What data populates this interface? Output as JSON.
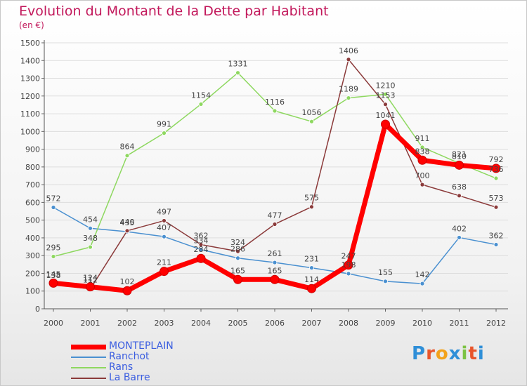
{
  "chart_data": {
    "type": "line",
    "title": "Evolution du Montant de la Dette par Habitant",
    "subtitle": "(en €)",
    "x": [
      "2000",
      "2001",
      "2002",
      "2003",
      "2004",
      "2005",
      "2006",
      "2007",
      "2008",
      "2009",
      "2010",
      "2011",
      "2012"
    ],
    "yticks": [
      "0",
      "100",
      "200",
      "300",
      "400",
      "500",
      "600",
      "700",
      "800",
      "900",
      "1000",
      "1100",
      "1200",
      "1300",
      "1400",
      "1500"
    ],
    "ylim": [
      0,
      1500
    ],
    "grid": "horizontal",
    "legend_position": "bottom-left",
    "series": [
      {
        "name": "MONTEPLAIN",
        "values": [
          145,
          124,
          102,
          211,
          284,
          165,
          165,
          114,
          247,
          1041,
          838,
          810,
          792
        ],
        "labels": [
          "145",
          "124",
          "102",
          "211",
          "284",
          "165",
          "165",
          "114",
          "247",
          "1041",
          "838",
          "810",
          "792"
        ],
        "color": "#ff0000",
        "width": 7,
        "marker": 6
      },
      {
        "name": "Ranchot",
        "values": [
          572,
          454,
          435,
          407,
          334,
          286,
          261,
          231,
          198,
          155,
          142,
          402,
          362
        ],
        "labels": [
          "572",
          "454",
          "435",
          "407",
          "334",
          "286",
          "261",
          "231",
          "198",
          "155",
          "142",
          "402",
          "362"
        ],
        "color": "#4a90d0",
        "width": 1.5,
        "marker": 3
      },
      {
        "name": "Rans",
        "values": [
          295,
          348,
          864,
          991,
          1154,
          1331,
          1116,
          1056,
          1189,
          1210,
          911,
          821,
          736
        ],
        "labels": [
          "295",
          "348",
          "864",
          "991",
          "1154",
          "1331",
          "1116",
          "1056",
          "1189",
          "1210",
          "911",
          "821",
          "736"
        ],
        "color": "#8ed860",
        "width": 1.5,
        "marker": 3
      },
      {
        "name": "La Barre",
        "values": [
          138,
          112,
          440,
          497,
          362,
          324,
          477,
          575,
          1406,
          1153,
          700,
          638,
          573
        ],
        "labels": [
          "138",
          "112",
          "440",
          "497",
          "362",
          "324",
          "477",
          "575",
          "1406",
          "1153",
          "700",
          "638",
          "573"
        ],
        "color": "#8b3a3a",
        "width": 1.5,
        "marker": 3
      }
    ]
  },
  "logo": {
    "letters": [
      "P",
      "r",
      "o",
      "x",
      "i",
      "t",
      "i"
    ]
  }
}
